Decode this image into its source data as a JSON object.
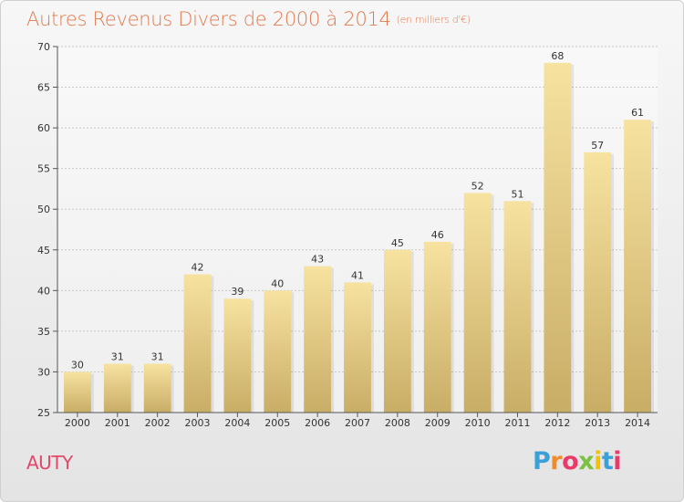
{
  "header": {
    "title": "Autres Revenus Divers de 2000 à 2014",
    "unit": "(en milliers d'€)"
  },
  "footer": {
    "commune": "AUTY",
    "logo_letters": [
      "P",
      "r",
      "o",
      "x",
      "i",
      "t",
      "i"
    ],
    "logo_colors": [
      "#3aa0d8",
      "#f28c28",
      "#e83a6b",
      "#7cc242",
      "#f2c200",
      "#3aa0d8",
      "#e83a6b"
    ]
  },
  "colors": {
    "title": "#e07a4e",
    "commune": "#e0496a",
    "bar_top": "#f7e2a0",
    "bar_bottom": "#c8ad66",
    "grid": "#c8c8c8",
    "axis": "#555555"
  },
  "chart_data": {
    "type": "bar",
    "title": "Autres Revenus Divers de 2000 à 2014",
    "subtitle": "(en milliers d'€)",
    "xlabel": "",
    "ylabel": "",
    "categories": [
      "2000",
      "2001",
      "2002",
      "2003",
      "2004",
      "2005",
      "2006",
      "2007",
      "2008",
      "2009",
      "2010",
      "2011",
      "2012",
      "2013",
      "2014"
    ],
    "values": [
      30,
      31,
      31,
      42,
      39,
      40,
      43,
      41,
      45,
      46,
      52,
      51,
      68,
      57,
      61
    ],
    "ylim": [
      25,
      70
    ],
    "yticks": [
      25,
      30,
      35,
      40,
      45,
      50,
      55,
      60,
      65,
      70
    ],
    "grid": true,
    "legend": "none"
  }
}
